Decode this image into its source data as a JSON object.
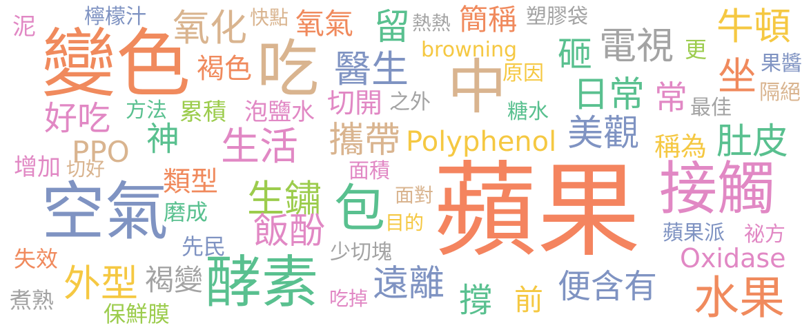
{
  "palette": {
    "orange": "#f08a5d",
    "salmon": "#f4845f",
    "tan": "#d9b48f",
    "blue": "#7f93c2",
    "green": "#59c08f",
    "pink": "#e188c4",
    "yellow": "#f5c842",
    "gray": "#a3a3a3",
    "lime": "#9ccc4d"
  },
  "words": [
    {
      "text": "蘋果",
      "color": "salmon"
    },
    {
      "text": "變色",
      "color": "orange"
    },
    {
      "text": "吃",
      "color": "tan"
    },
    {
      "text": "中",
      "color": "tan"
    },
    {
      "text": "空氣",
      "color": "blue"
    },
    {
      "text": "酵素",
      "color": "green"
    },
    {
      "text": "接觸",
      "color": "pink"
    },
    {
      "text": "水果",
      "color": "orange"
    },
    {
      "text": "包",
      "color": "green"
    },
    {
      "text": "氧化",
      "color": "tan"
    },
    {
      "text": "電視",
      "color": "gray"
    },
    {
      "text": "醫生",
      "color": "blue"
    },
    {
      "text": "日常",
      "color": "green"
    },
    {
      "text": "生活",
      "color": "pink"
    },
    {
      "text": "攜帶",
      "color": "tan"
    },
    {
      "text": "美觀",
      "color": "blue"
    },
    {
      "text": "肚皮",
      "color": "green"
    },
    {
      "text": "牛頓",
      "color": "yellow"
    },
    {
      "text": "坐",
      "color": "orange"
    },
    {
      "text": "外型",
      "color": "yellow"
    },
    {
      "text": "遠離",
      "color": "blue"
    },
    {
      "text": "生鏽",
      "color": "lime"
    },
    {
      "text": "飯酚",
      "color": "pink"
    },
    {
      "text": "好吃",
      "color": "pink"
    },
    {
      "text": "留",
      "color": "green"
    },
    {
      "text": "砸",
      "color": "green"
    },
    {
      "text": "神",
      "color": "green"
    },
    {
      "text": "常",
      "color": "pink"
    },
    {
      "text": "撐",
      "color": "green"
    },
    {
      "text": "便含有",
      "color": "blue"
    },
    {
      "text": "氧氣",
      "color": "orange"
    },
    {
      "text": "簡稱",
      "color": "orange"
    },
    {
      "text": "褐色",
      "color": "orange"
    },
    {
      "text": "切開",
      "color": "pink"
    },
    {
      "text": "類型",
      "color": "orange"
    },
    {
      "text": "褐變",
      "color": "gray"
    },
    {
      "text": "前",
      "color": "yellow"
    },
    {
      "text": "稱為",
      "color": "yellow"
    },
    {
      "text": "PPO",
      "color": "tan"
    },
    {
      "text": "Polyphenol",
      "color": "yellow"
    },
    {
      "text": "Oxidase",
      "color": "pink"
    },
    {
      "text": "browning",
      "color": "yellow"
    },
    {
      "text": "檸檬汁",
      "color": "blue"
    },
    {
      "text": "快點",
      "color": "tan"
    },
    {
      "text": "熱熱",
      "color": "gray"
    },
    {
      "text": "塑膠袋",
      "color": "gray"
    },
    {
      "text": "泥",
      "color": "pink"
    },
    {
      "text": "更",
      "color": "lime"
    },
    {
      "text": "果醬",
      "color": "blue"
    },
    {
      "text": "原因",
      "color": "yellow"
    },
    {
      "text": "隔絕",
      "color": "tan"
    },
    {
      "text": "最佳",
      "color": "gray"
    },
    {
      "text": "方法",
      "color": "green"
    },
    {
      "text": "累積",
      "color": "lime"
    },
    {
      "text": "泡鹽水",
      "color": "pink"
    },
    {
      "text": "之外",
      "color": "gray"
    },
    {
      "text": "糖水",
      "color": "green"
    },
    {
      "text": "增加",
      "color": "pink"
    },
    {
      "text": "切好",
      "color": "tan"
    },
    {
      "text": "面積",
      "color": "pink"
    },
    {
      "text": "磨成",
      "color": "green"
    },
    {
      "text": "先民",
      "color": "blue"
    },
    {
      "text": "面對",
      "color": "tan"
    },
    {
      "text": "目的",
      "color": "yellow"
    },
    {
      "text": "少切塊",
      "color": "gray"
    },
    {
      "text": "蘋果派",
      "color": "blue"
    },
    {
      "text": "祕方",
      "color": "pink"
    },
    {
      "text": "失效",
      "color": "orange"
    },
    {
      "text": "煮熟",
      "color": "gray"
    },
    {
      "text": "保鮮膜",
      "color": "lime"
    },
    {
      "text": "吃掉",
      "color": "pink"
    }
  ]
}
